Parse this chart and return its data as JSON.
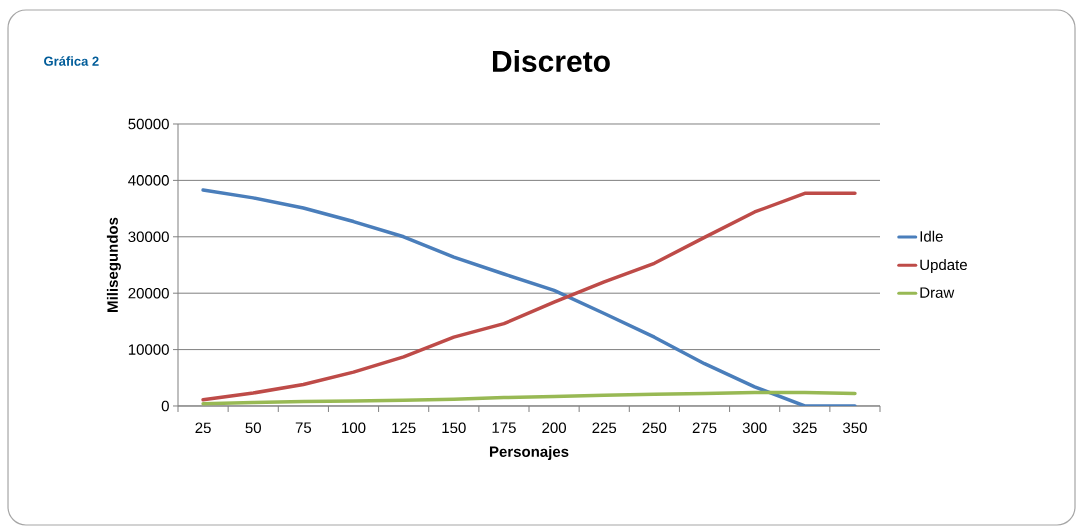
{
  "chart_data": {
    "type": "line",
    "title": "Discreto",
    "xlabel": "Personajes",
    "ylabel": "Milisegundos",
    "annotations": [
      "Gráfica 2"
    ],
    "categories": [
      "25",
      "50",
      "75",
      "100",
      "125",
      "150",
      "175",
      "200",
      "225",
      "250",
      "275",
      "300",
      "325",
      "350"
    ],
    "series": [
      {
        "name": "Idle",
        "color": "#4a7ebb",
        "values": [
          38300,
          36900,
          35100,
          32700,
          30000,
          26400,
          23400,
          20500,
          16400,
          12200,
          7500,
          3400,
          0,
          0
        ]
      },
      {
        "name": "Update",
        "color": "#be4b48",
        "values": [
          1100,
          2300,
          3800,
          6000,
          8700,
          12200,
          14600,
          18400,
          22000,
          25300,
          29900,
          34400,
          37700,
          37700
        ]
      },
      {
        "name": "Draw",
        "color": "#98b954",
        "values": [
          400,
          600,
          800,
          900,
          1000,
          1200,
          1500,
          1700,
          1900,
          2100,
          2200,
          2400,
          2400,
          2200
        ]
      }
    ],
    "ylim": [
      0,
      50000
    ],
    "yticks": [
      0,
      10000,
      20000,
      30000,
      40000,
      50000
    ],
    "grid": "y",
    "legend": "right",
    "marker": "none",
    "line_style": "solid"
  }
}
